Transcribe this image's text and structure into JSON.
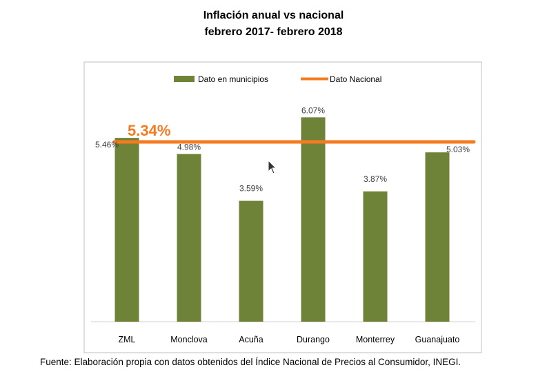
{
  "title_line1": "Inflación anual vs nacional",
  "title_line2": "febrero 2017- febrero 2018",
  "source": "Fuente: Elaboración propia con datos obtenidos del Índice Nacional de Precios al Consumidor, INEGI.",
  "colors": {
    "bar": "#6e8238",
    "line": "#f47b20",
    "frame": "#bfbfbf",
    "axis": "#d0d0d0",
    "label": "#404040"
  },
  "chart_data": {
    "type": "bar",
    "categories": [
      "ZML",
      "Monclova",
      "Acuña",
      "Durango",
      "Monterrey",
      "Guanajuato"
    ],
    "series": [
      {
        "name": "Dato en municipios",
        "values": [
          5.46,
          4.98,
          3.59,
          6.07,
          3.87,
          5.03
        ]
      },
      {
        "name": "Dato Nacional",
        "type": "line",
        "value": 5.34
      }
    ],
    "value_labels": [
      "5.46%",
      "4.98%",
      "3.59%",
      "6.07%",
      "3.87%",
      "5.03%"
    ],
    "national_label": "5.34%",
    "legend": [
      "Dato en municipios",
      "Dato Nacional"
    ],
    "legend_position": "top",
    "ylim": [
      0,
      6.65
    ],
    "grid": false
  }
}
